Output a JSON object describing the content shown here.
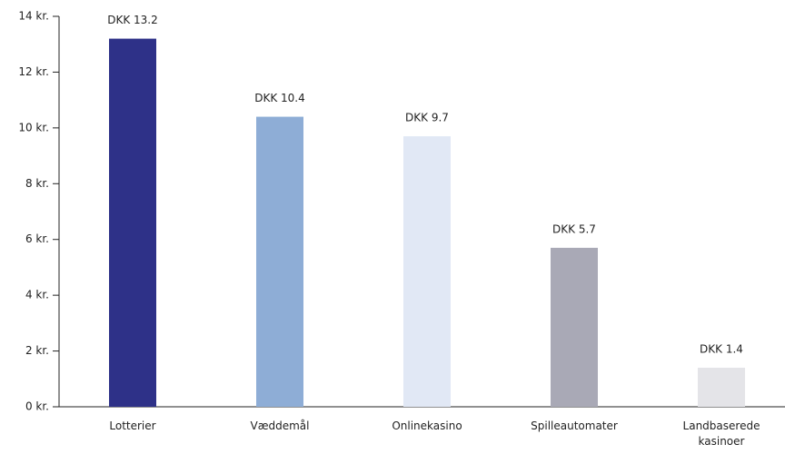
{
  "chart_data": {
    "type": "bar",
    "categories": [
      "Lotterier",
      "Væddemål",
      "Onlinekasino",
      "Spilleautomater",
      "Landbaserede kasinoer"
    ],
    "values": [
      13.2,
      10.4,
      9.7,
      5.7,
      1.4
    ],
    "value_labels": [
      "DKK 13.2",
      "DKK 10.4",
      "DKK 9.7",
      "DKK 5.7",
      "DKK 1.4"
    ],
    "colors": [
      "#2e3188",
      "#8eadd6",
      "#e1e8f5",
      "#a9a9b6",
      "#e4e4e8"
    ],
    "ylim": [
      0,
      14
    ],
    "yticks": [
      {
        "value": 0,
        "label": "0 kr."
      },
      {
        "value": 2,
        "label": "2 kr."
      },
      {
        "value": 4,
        "label": "4 kr."
      },
      {
        "value": 6,
        "label": "6 kr."
      },
      {
        "value": 8,
        "label": "8 kr."
      },
      {
        "value": 10,
        "label": "10 kr."
      },
      {
        "value": 12,
        "label": "12 kr."
      },
      {
        "value": 14,
        "label": "14 kr."
      }
    ]
  }
}
